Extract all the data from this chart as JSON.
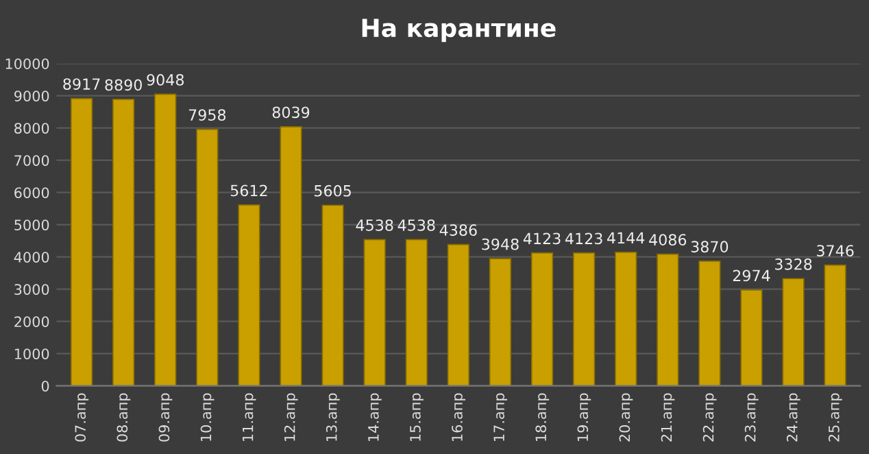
{
  "chart_data": {
    "type": "bar",
    "title": "На карантине",
    "categories": [
      "07.апр",
      "08.апр",
      "09.апр",
      "10.апр",
      "11.апр",
      "12.апр",
      "13.апр",
      "14.апр",
      "15.апр",
      "16.апр",
      "17.апр",
      "18.апр",
      "19.апр",
      "20.апр",
      "21.апр",
      "22.апр",
      "23.апр",
      "24.апр",
      "25.апр"
    ],
    "values": [
      8917,
      8890,
      9048,
      7958,
      5612,
      8039,
      5605,
      4538,
      4538,
      4386,
      3948,
      4123,
      4123,
      4144,
      4086,
      3870,
      2974,
      3328,
      3746
    ],
    "color": "#c9a000",
    "ylim": [
      0,
      10000
    ],
    "yticks": [
      0,
      1000,
      2000,
      3000,
      4000,
      5000,
      6000,
      7000,
      8000,
      9000,
      10000
    ],
    "grid": "y",
    "data_labels": true
  }
}
